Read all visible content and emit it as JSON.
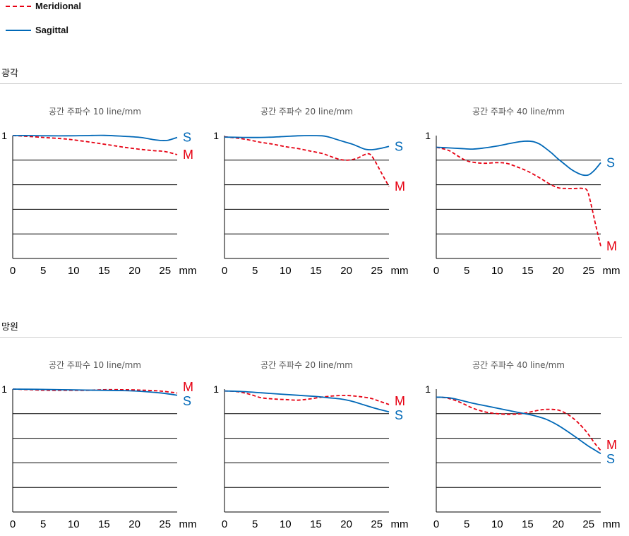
{
  "legend": {
    "meridional_label": "Meridional",
    "sagittal_label": "Sagittal",
    "meridional_color": "#e60012",
    "sagittal_color": "#0068b7"
  },
  "sections": {
    "wide_title": "광각",
    "tele_title": "망원"
  },
  "chart_data": [
    {
      "type": "line",
      "section": "광각",
      "title": "공간 주파수 10 line/mm",
      "xlim": [
        0,
        27
      ],
      "ylim": [
        0,
        1
      ],
      "xticks": [
        "0",
        "5",
        "10",
        "15",
        "20",
        "25"
      ],
      "x_unit": "mm",
      "y_top_label": "1",
      "series": [
        {
          "name": "Meridional",
          "end_label": "M",
          "style": "dashed",
          "x": [
            0,
            2,
            5,
            8,
            10,
            13,
            15,
            17,
            19,
            21,
            23,
            25,
            27
          ],
          "y": [
            1.0,
            0.995,
            0.985,
            0.975,
            0.965,
            0.945,
            0.93,
            0.915,
            0.9,
            0.888,
            0.878,
            0.87,
            0.845
          ]
        },
        {
          "name": "Sagittal",
          "end_label": "S",
          "style": "solid",
          "x": [
            0,
            3,
            6,
            9,
            12,
            15,
            18,
            21,
            23,
            24.5,
            25.5,
            27
          ],
          "y": [
            1.0,
            1.0,
            0.998,
            0.998,
            1.0,
            1.002,
            0.995,
            0.985,
            0.968,
            0.96,
            0.962,
            0.985
          ]
        }
      ]
    },
    {
      "type": "line",
      "section": "광각",
      "title": "공간 주파수 20 line/mm",
      "xlim": [
        0,
        27
      ],
      "ylim": [
        0,
        1
      ],
      "xticks": [
        "0",
        "5",
        "10",
        "15",
        "20",
        "25"
      ],
      "x_unit": "mm",
      "y_top_label": "1",
      "series": [
        {
          "name": "Meridional",
          "end_label": "M",
          "style": "dashed",
          "x": [
            0,
            2,
            4,
            6,
            8,
            10,
            12,
            14,
            16,
            17,
            18,
            19,
            20,
            21,
            22,
            23,
            23.8,
            24.5,
            25.5,
            26.5,
            27
          ],
          "y": [
            0.99,
            0.98,
            0.965,
            0.945,
            0.93,
            0.91,
            0.895,
            0.875,
            0.855,
            0.838,
            0.82,
            0.805,
            0.8,
            0.805,
            0.82,
            0.845,
            0.85,
            0.81,
            0.72,
            0.63,
            0.585
          ]
        },
        {
          "name": "Sagittal",
          "end_label": "S",
          "style": "solid",
          "x": [
            0,
            3,
            6,
            9,
            12,
            14,
            16,
            17,
            18,
            20,
            21,
            22,
            23,
            24,
            25,
            26,
            27
          ],
          "y": [
            0.988,
            0.985,
            0.985,
            0.99,
            0.998,
            1.0,
            0.998,
            0.99,
            0.975,
            0.945,
            0.93,
            0.91,
            0.89,
            0.885,
            0.89,
            0.9,
            0.912
          ]
        }
      ]
    },
    {
      "type": "line",
      "section": "광각",
      "title": "공간 주파수 40 line/mm",
      "xlim": [
        0,
        27
      ],
      "ylim": [
        0,
        1
      ],
      "xticks": [
        "0",
        "5",
        "10",
        "15",
        "20",
        "25"
      ],
      "x_unit": "mm",
      "y_top_label": "1",
      "series": [
        {
          "name": "Meridional",
          "end_label": "M",
          "style": "dashed",
          "x": [
            0,
            2,
            3.5,
            5,
            6.5,
            8,
            10,
            11.5,
            13,
            15,
            17,
            18.5,
            20,
            21.5,
            23,
            24,
            24.8,
            25.5,
            26.2,
            27
          ],
          "y": [
            0.905,
            0.88,
            0.835,
            0.795,
            0.78,
            0.775,
            0.78,
            0.775,
            0.75,
            0.71,
            0.655,
            0.61,
            0.575,
            0.57,
            0.57,
            0.57,
            0.55,
            0.42,
            0.265,
            0.1
          ]
        },
        {
          "name": "Sagittal",
          "end_label": "S",
          "style": "solid",
          "x": [
            0,
            2,
            4,
            6,
            8,
            10,
            12,
            14,
            15,
            16,
            17,
            18,
            19,
            20,
            21,
            22,
            23,
            24,
            25,
            26,
            27
          ],
          "y": [
            0.905,
            0.9,
            0.895,
            0.89,
            0.9,
            0.915,
            0.935,
            0.952,
            0.955,
            0.95,
            0.93,
            0.895,
            0.855,
            0.81,
            0.77,
            0.73,
            0.7,
            0.68,
            0.68,
            0.72,
            0.78
          ]
        }
      ]
    },
    {
      "type": "line",
      "section": "망원",
      "title": "공간 주파수 10 line/mm",
      "xlim": [
        0,
        27
      ],
      "ylim": [
        0,
        1
      ],
      "xticks": [
        "0",
        "5",
        "10",
        "15",
        "20",
        "25"
      ],
      "x_unit": "mm",
      "y_top_label": "1",
      "series": [
        {
          "name": "Meridional",
          "end_label": "M",
          "style": "dashed",
          "x": [
            0,
            3,
            6,
            9,
            12,
            15,
            18,
            21,
            24,
            26,
            27
          ],
          "y": [
            1.0,
            0.995,
            0.99,
            0.99,
            0.99,
            0.995,
            0.995,
            0.992,
            0.985,
            0.975,
            0.968
          ]
        },
        {
          "name": "Sagittal",
          "end_label": "S",
          "style": "solid",
          "x": [
            0,
            4,
            8,
            12,
            15,
            18,
            21,
            24,
            26,
            27
          ],
          "y": [
            1.0,
            0.998,
            0.995,
            0.992,
            0.99,
            0.988,
            0.982,
            0.97,
            0.958,
            0.95
          ]
        }
      ]
    },
    {
      "type": "line",
      "section": "망원",
      "title": "공간 주파수 20 line/mm",
      "xlim": [
        0,
        27
      ],
      "ylim": [
        0,
        1
      ],
      "xticks": [
        "0",
        "5",
        "10",
        "15",
        "20",
        "25"
      ],
      "x_unit": "mm",
      "y_top_label": "1",
      "series": [
        {
          "name": "Meridional",
          "end_label": "M",
          "style": "dashed",
          "x": [
            0,
            2,
            4,
            6,
            8,
            10,
            12,
            14,
            16,
            18,
            20,
            22,
            24,
            25.5,
            27
          ],
          "y": [
            0.985,
            0.98,
            0.96,
            0.93,
            0.92,
            0.915,
            0.91,
            0.92,
            0.935,
            0.945,
            0.948,
            0.94,
            0.925,
            0.9,
            0.875
          ]
        },
        {
          "name": "Sagittal",
          "end_label": "S",
          "style": "solid",
          "x": [
            0,
            3,
            6,
            9,
            12,
            15,
            17,
            19,
            21,
            23,
            25,
            27
          ],
          "y": [
            0.985,
            0.98,
            0.97,
            0.96,
            0.95,
            0.94,
            0.93,
            0.92,
            0.9,
            0.87,
            0.84,
            0.815
          ]
        }
      ]
    },
    {
      "type": "line",
      "section": "망원",
      "title": "공간 주파수 40 line/mm",
      "xlim": [
        0,
        27
      ],
      "ylim": [
        0,
        1
      ],
      "xticks": [
        "0",
        "5",
        "10",
        "15",
        "20",
        "25"
      ],
      "x_unit": "mm",
      "y_top_label": "1",
      "series": [
        {
          "name": "Meridional",
          "end_label": "M",
          "style": "dashed",
          "x": [
            0,
            1.5,
            3,
            4.5,
            6,
            8,
            10,
            12,
            14,
            15.5,
            17,
            18,
            19,
            20,
            21,
            22,
            23,
            24,
            25,
            26,
            27
          ],
          "y": [
            0.935,
            0.93,
            0.91,
            0.88,
            0.845,
            0.815,
            0.8,
            0.795,
            0.8,
            0.815,
            0.83,
            0.835,
            0.835,
            0.83,
            0.81,
            0.78,
            0.74,
            0.69,
            0.63,
            0.56,
            0.5
          ]
        },
        {
          "name": "Sagittal",
          "end_label": "S",
          "style": "solid",
          "x": [
            0,
            2,
            4,
            6,
            8,
            10,
            12,
            14,
            16,
            18,
            20,
            22,
            24,
            25,
            26,
            27
          ],
          "y": [
            0.935,
            0.93,
            0.91,
            0.885,
            0.865,
            0.845,
            0.825,
            0.805,
            0.785,
            0.755,
            0.705,
            0.64,
            0.57,
            0.535,
            0.505,
            0.475
          ]
        }
      ]
    }
  ]
}
